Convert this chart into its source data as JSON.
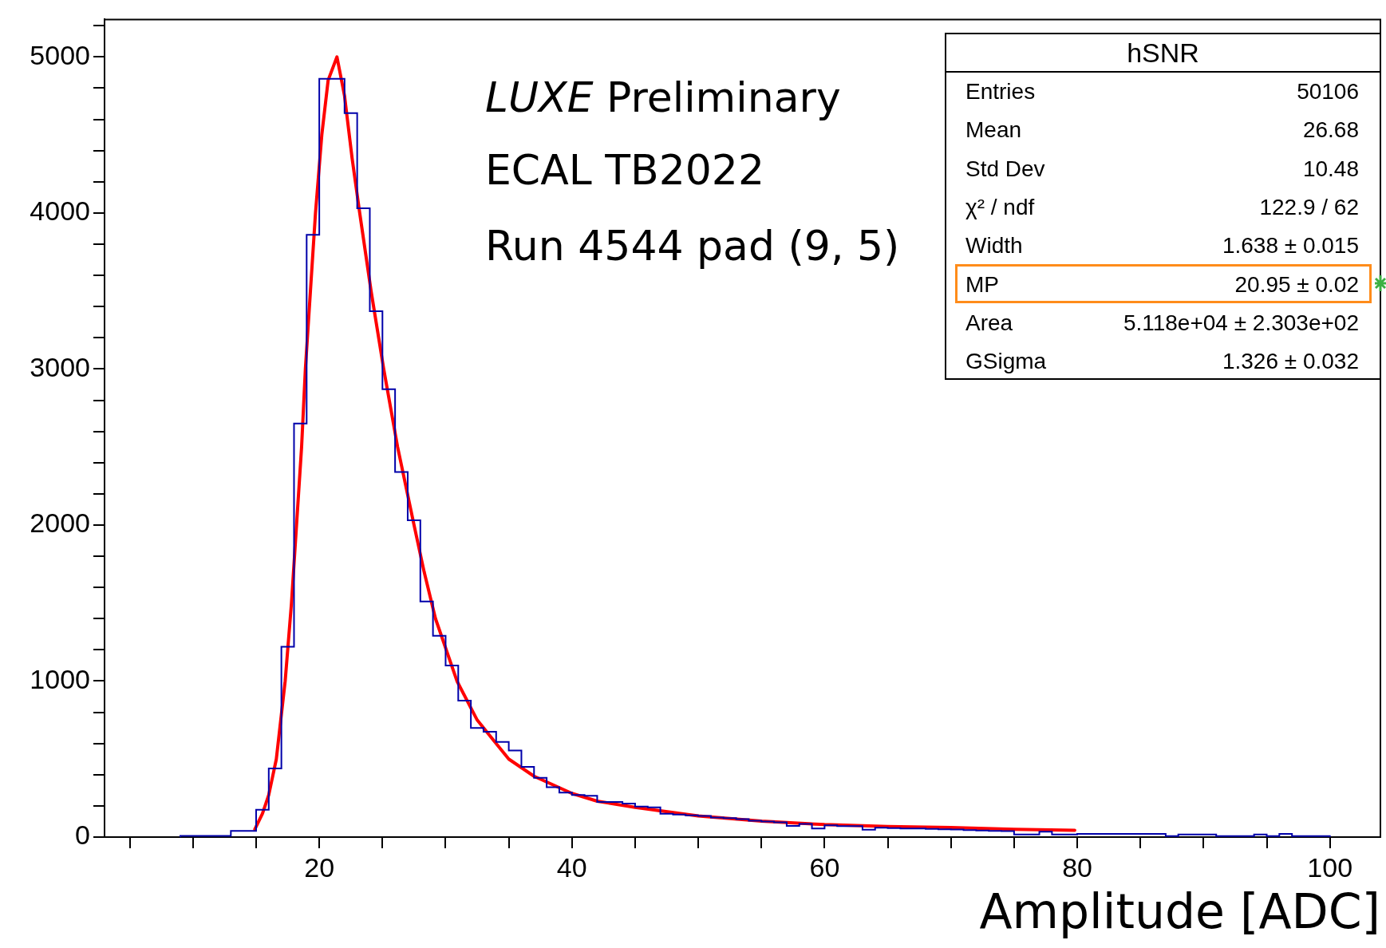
{
  "chart_data": [
    {
      "type": "histogram",
      "xlabel": "Amplitude [ADC]",
      "color": "#0000aa",
      "bins": [
        9,
        10,
        11,
        12,
        13,
        14,
        15,
        16,
        17,
        18,
        19,
        20,
        21,
        22,
        23,
        24,
        25,
        26,
        27,
        28,
        29,
        30,
        31,
        32,
        33,
        34,
        35,
        36,
        37,
        38,
        39,
        40,
        41,
        42,
        43,
        44,
        45,
        46,
        47,
        48,
        49,
        50,
        51,
        52,
        53,
        54,
        55,
        56,
        57,
        58,
        59,
        60,
        61,
        62,
        63,
        64,
        65,
        66,
        67,
        68,
        69,
        70,
        71,
        72,
        73,
        74,
        75,
        76,
        77,
        78,
        79,
        80,
        81,
        82,
        83,
        84,
        85,
        86,
        87,
        88,
        89,
        90,
        91,
        92,
        93,
        94,
        95,
        96,
        97,
        98,
        99,
        100
      ],
      "values": [
        8,
        8,
        8,
        8,
        40,
        40,
        175,
        440,
        1220,
        2650,
        3860,
        4860,
        4860,
        4640,
        4030,
        3370,
        2870,
        2340,
        2030,
        1510,
        1290,
        1100,
        875,
        700,
        675,
        610,
        555,
        450,
        380,
        320,
        285,
        270,
        265,
        225,
        225,
        215,
        195,
        190,
        150,
        145,
        140,
        135,
        125,
        122,
        115,
        105,
        100,
        95,
        72,
        85,
        55,
        75,
        70,
        70,
        47,
        60,
        58,
        55,
        55,
        52,
        50,
        48,
        45,
        42,
        40,
        38,
        17,
        17,
        35,
        17,
        17,
        20,
        20,
        20,
        20,
        20,
        20,
        20,
        7,
        17,
        17,
        17,
        7,
        7,
        7,
        17,
        7,
        20,
        7,
        7,
        7
      ],
      "series": [
        {
          "type": "line",
          "color": "#ff0000",
          "x": [
            14.9,
            15.5,
            16,
            16.6,
            17.3,
            17.8,
            18.2,
            18.6,
            18.9,
            19.3,
            19.7,
            20.2,
            20.7,
            21.4,
            22,
            22.6,
            23.2,
            24.1,
            25.1,
            26.2,
            27.5,
            28.3,
            29.2,
            30.9,
            32.5,
            34,
            35,
            37,
            40,
            42,
            45,
            50,
            55,
            60,
            65,
            70,
            75,
            79.8
          ],
          "values": [
            50,
            150,
            270,
            500,
            1000,
            1500,
            2000,
            2500,
            3000,
            3500,
            4000,
            4500,
            4850,
            5000,
            4750,
            4350,
            4000,
            3500,
            3000,
            2500,
            2000,
            1700,
            1400,
            1000,
            750,
            600,
            500,
            390,
            280,
            230,
            190,
            136,
            102,
            80,
            68,
            61,
            50,
            44
          ]
        }
      ],
      "xlim": [
        3,
        104
      ],
      "ylim": [
        0,
        5240
      ],
      "xticks": [
        {
          "value": 5,
          "label": null
        },
        {
          "value": 10,
          "label": null
        },
        {
          "value": 15,
          "label": null
        },
        20,
        {
          "value": 25,
          "label": null
        },
        {
          "value": 30,
          "label": null
        },
        {
          "value": 35,
          "label": null
        },
        40,
        {
          "value": 45,
          "label": null
        },
        {
          "value": 50,
          "label": null
        },
        {
          "value": 55,
          "label": null
        },
        60,
        {
          "value": 65,
          "label": null
        },
        {
          "value": 70,
          "label": null
        },
        {
          "value": 75,
          "label": null
        },
        80,
        {
          "value": 85,
          "label": null
        },
        {
          "value": 90,
          "label": null
        },
        {
          "value": 95,
          "label": null
        },
        100
      ],
      "yticks": [
        0,
        {
          "value": 200,
          "label": null
        },
        {
          "value": 400,
          "label": null
        },
        {
          "value": 600,
          "label": null
        },
        {
          "value": 800,
          "label": null
        },
        1000,
        {
          "value": 1200,
          "label": null
        },
        {
          "value": 1400,
          "label": null
        },
        {
          "value": 1600,
          "label": null
        },
        {
          "value": 1800,
          "label": null
        },
        2000,
        {
          "value": 2200,
          "label": null
        },
        {
          "value": 2400,
          "label": null
        },
        {
          "value": 2600,
          "label": null
        },
        {
          "value": 2800,
          "label": null
        },
        3000,
        {
          "value": 3200,
          "label": null
        },
        {
          "value": 3400,
          "label": null
        },
        {
          "value": 3600,
          "label": null
        },
        {
          "value": 3800,
          "label": null
        },
        4000,
        {
          "value": 4200,
          "label": null
        },
        {
          "value": 4400,
          "label": null
        },
        {
          "value": 4600,
          "label": null
        },
        {
          "value": 4800,
          "label": null
        },
        5000,
        {
          "value": 5200,
          "label": null
        }
      ],
      "annotations": [
        "LUXE Preliminary",
        "ECAL TB2022",
        "Run 4544 pad (9, 5)"
      ]
    },
    {
      "type": "other",
      "title": "hSNR",
      "annotations": [
        "Entries",
        "50106",
        "Mean",
        "26.68",
        "Std Dev",
        "10.48",
        "χ² / ndf",
        "122.9 / 62",
        "Width",
        "1.638 ± 0.015",
        "MP",
        "20.95 ± 0.02",
        "Area",
        "5.118e+04 ± 2.303e+02",
        "GSigma",
        "1.326 ± 0.032"
      ]
    }
  ]
}
